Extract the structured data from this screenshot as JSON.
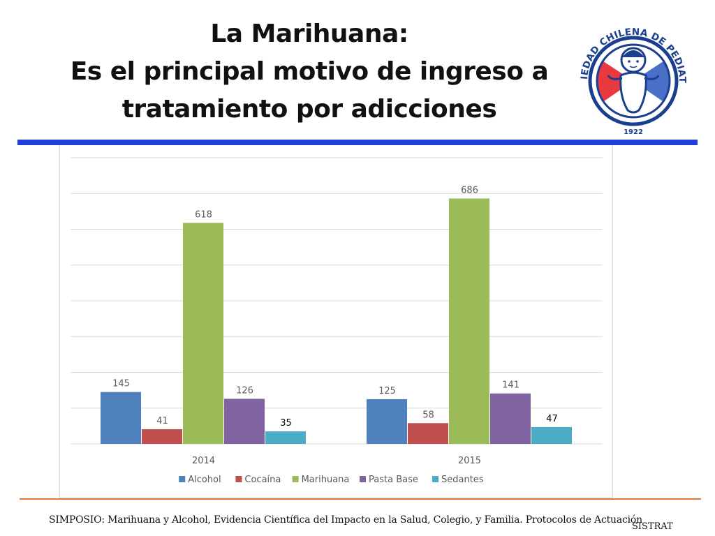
{
  "title": {
    "line1": "La Marihuana:",
    "line2": "Es el principal motivo de ingreso  a",
    "line3": "tratamiento por adicciones"
  },
  "logo": {
    "ring_text": "SOCIEDAD CHILENA DE PEDIATRIA",
    "year": "1922",
    "colors": {
      "red": "#e8393f",
      "blue": "#4a6fc7",
      "navy": "#1b3f8f"
    }
  },
  "chart_data": {
    "type": "bar",
    "categories": [
      "2014",
      "2015"
    ],
    "series": [
      {
        "name": "Alcohol",
        "values": [
          145,
          125
        ],
        "color": "#4f81bd"
      },
      {
        "name": "Cocaína",
        "values": [
          41,
          58
        ],
        "color": "#c0504d"
      },
      {
        "name": "Marihuana",
        "values": [
          618,
          686
        ],
        "color": "#9bbb59"
      },
      {
        "name": "Pasta Base",
        "values": [
          126,
          141
        ],
        "color": "#8064a2"
      },
      {
        "name": "Sedantes",
        "values": [
          35,
          47
        ],
        "color": "#4bacc6"
      }
    ],
    "ylim": [
      0,
      800
    ],
    "ytick_step": 100,
    "y_tick_labels_shown": false,
    "grid": true,
    "legend_position": "bottom",
    "title": "",
    "xlabel": "",
    "ylabel": ""
  },
  "footer": {
    "text": "SIMPOSIO: Marihuana y Alcohol, Evidencia Científica del Impacto en la Salud, Colegio, y Familia. Protocolos de Actuación",
    "source": "SISTRAT"
  },
  "colors": {
    "title_rule": "#1f3fd8",
    "footer_rule": "#e07a3a"
  }
}
